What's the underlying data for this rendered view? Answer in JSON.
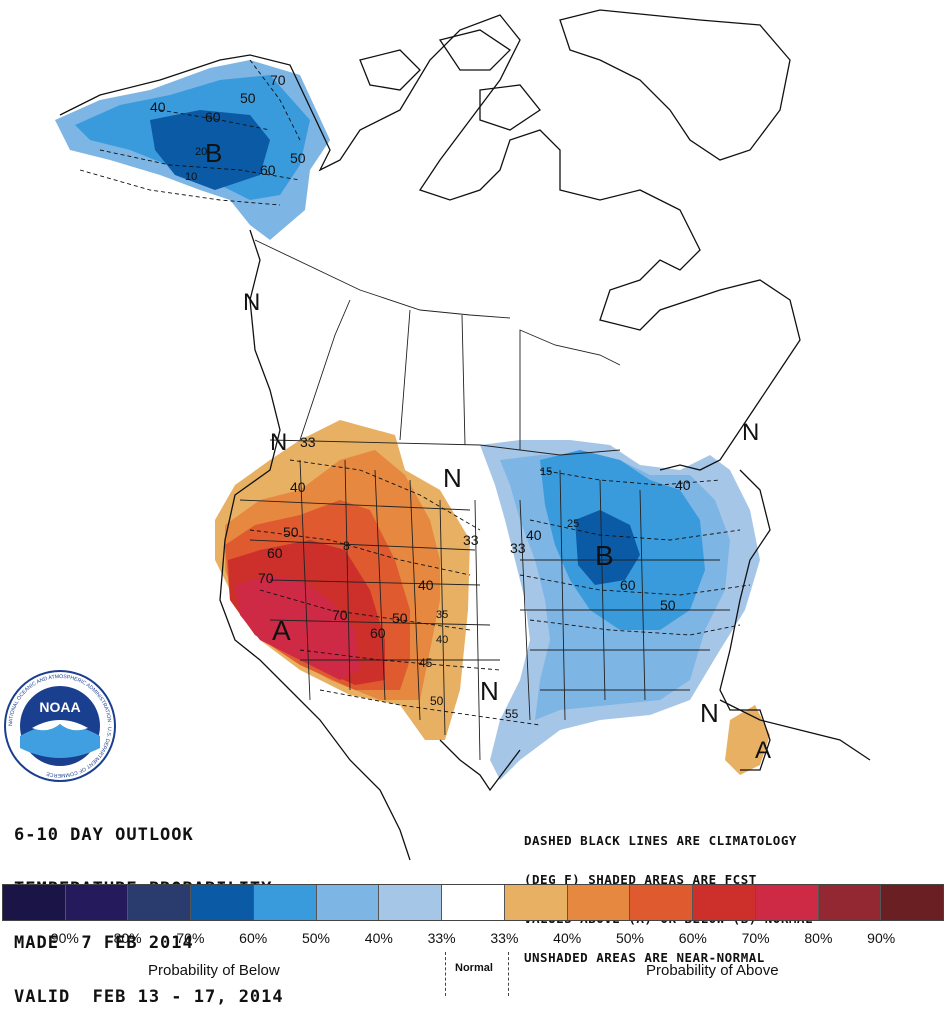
{
  "map": {
    "title_lines": [
      "6-10 DAY OUTLOOK",
      "TEMPERATURE PROBABILITY",
      "MADE  7 FEB 2014",
      "VALID  FEB 13 - 17, 2014"
    ],
    "note_lines": [
      "DASHED BLACK LINES ARE CLIMATOLOGY",
      "(DEG F) SHADED AREAS ARE FCST",
      "VALUES ABOVE (A) OR BELOW (B) NORMAL",
      "UNSHADED AREAS ARE NEAR-NORMAL"
    ],
    "region_letters": {
      "alaska": "B",
      "west": "A",
      "east": "B",
      "florida": "A",
      "normal_1": "N",
      "normal_2": "N",
      "normal_3": "N",
      "normal_4": "N",
      "normal_5": "N",
      "normal_6": "N"
    },
    "contour_labels": {
      "ak_70": "70",
      "ak_50a": "50",
      "ak_60a": "60",
      "ak_40": "40",
      "ak_60b": "60",
      "ak_50b": "50",
      "ak_10": "10",
      "ak_20": "20",
      "w_33": "33",
      "w_40": "40",
      "w_50": "50",
      "w_60": "60",
      "w_70": "70",
      "w_70b": "70",
      "w_60b": "60",
      "w_50b": "50",
      "w_40b": "40",
      "w_33b": "33",
      "w_35": "35",
      "w_40c": "40",
      "w_45": "45",
      "w_50c": "50",
      "w_55": "55",
      "w_8": "8",
      "e_15": "15",
      "e_25": "25",
      "e_40": "40",
      "e_33": "33",
      "e_40b": "40",
      "e_60": "60",
      "e_50": "50"
    },
    "logo_text": "NOAA",
    "logo_ring_text": "NATIONAL OCEANIC AND ATMOSPHERIC ADMINISTRATION · U.S. DEPARTMENT OF COMMERCE"
  },
  "legend": {
    "colors": [
      "#1b1446",
      "#251a5b",
      "#2a3c6e",
      "#0b5aa6",
      "#3a9bdc",
      "#7db5e5",
      "#a6c6e8",
      "#ffffff",
      "#e8b063",
      "#e6883f",
      "#df5a2f",
      "#cd2f2a",
      "#cf2a45",
      "#932833",
      "#6a1f22"
    ],
    "ticks": [
      "90%",
      "80%",
      "70%",
      "60%",
      "50%",
      "40%",
      "33%",
      "33%",
      "40%",
      "50%",
      "60%",
      "70%",
      "80%",
      "90%"
    ],
    "below_label": "Probability of Below",
    "normal_label": "Normal",
    "above_label": "Probability of Above"
  }
}
